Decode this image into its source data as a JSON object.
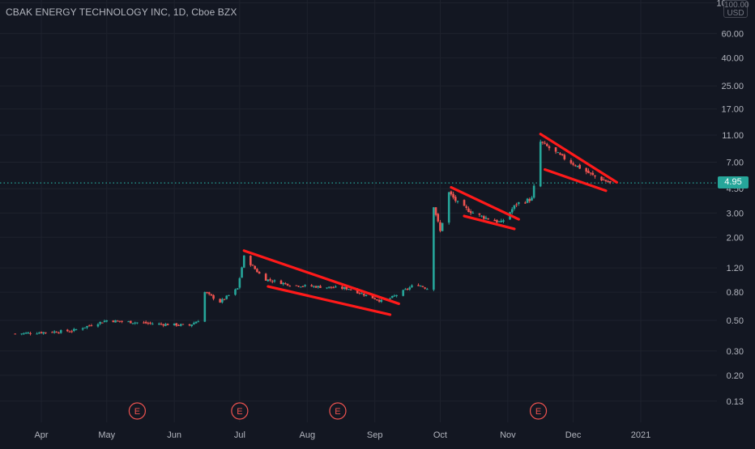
{
  "header": {
    "title": "CBAK ENERGY TECHNOLOGY INC, 1D, Cboe BZX"
  },
  "price_axis": {
    "currency_top": "100.00",
    "currency": "USD",
    "last_price_label": "4.95"
  },
  "colors": {
    "background": "#131722",
    "up": "#26a69a",
    "down": "#ef5350",
    "pattern_lines": "#ff1a1a",
    "grid": "#1e222d",
    "last_price_line": "#26a69a",
    "axis_text": "#b2b5be"
  },
  "chart_data": {
    "type": "candlestick",
    "symbol": "CBAK",
    "interval": "1D",
    "exchange": "Cboe BZX",
    "y_scale": "log",
    "y_ticks": [
      0.13,
      0.2,
      0.3,
      0.5,
      0.8,
      1.2,
      2.0,
      3.0,
      4.5,
      7.0,
      11.0,
      17.0,
      25.0,
      40.0,
      60.0,
      100.0
    ],
    "y_tick_labels": [
      "0.13",
      "0.20",
      "0.30",
      "0.50",
      "0.80",
      "1.20",
      "2.00",
      "3.00",
      "4.50",
      "7.00",
      "11.00",
      "17.00",
      "25.00",
      "40.00",
      "60.00",
      "100.00"
    ],
    "x_tick_labels": [
      "Apr",
      "May",
      "Jun",
      "Jul",
      "Aug",
      "Sep",
      "Oct",
      "Nov",
      "Dec",
      "2021"
    ],
    "last_price": 4.95,
    "earnings_markers": [
      {
        "date": "2020-05-15",
        "label": "E"
      },
      {
        "date": "2020-07-01",
        "label": "E"
      },
      {
        "date": "2020-08-15",
        "label": "E"
      },
      {
        "date": "2020-11-15",
        "label": "E"
      }
    ],
    "anchors": [
      {
        "date": "2020-03-20",
        "close": 0.4
      },
      {
        "date": "2020-04-15",
        "close": 0.42
      },
      {
        "date": "2020-05-01",
        "close": 0.5
      },
      {
        "date": "2020-05-25",
        "close": 0.47
      },
      {
        "date": "2020-06-08",
        "close": 0.46
      },
      {
        "date": "2020-06-12",
        "close": 0.5
      },
      {
        "date": "2020-06-15",
        "close": 0.8
      },
      {
        "date": "2020-06-22",
        "close": 0.68
      },
      {
        "date": "2020-06-30",
        "close": 0.85
      },
      {
        "date": "2020-07-03",
        "close": 1.45
      },
      {
        "date": "2020-07-12",
        "close": 1.0
      },
      {
        "date": "2020-07-25",
        "close": 0.9
      },
      {
        "date": "2020-08-20",
        "close": 0.85
      },
      {
        "date": "2020-09-05",
        "close": 0.68
      },
      {
        "date": "2020-09-12",
        "close": 0.78
      },
      {
        "date": "2020-09-20",
        "close": 0.92
      },
      {
        "date": "2020-09-25",
        "close": 0.85
      },
      {
        "date": "2020-09-28",
        "close": 3.4
      },
      {
        "date": "2020-10-01",
        "close": 2.2
      },
      {
        "date": "2020-10-05",
        "close": 4.2
      },
      {
        "date": "2020-10-10",
        "close": 3.4
      },
      {
        "date": "2020-10-18",
        "close": 2.9
      },
      {
        "date": "2020-10-29",
        "close": 2.55
      },
      {
        "date": "2020-11-05",
        "close": 3.5
      },
      {
        "date": "2020-11-12",
        "close": 3.8
      },
      {
        "date": "2020-11-14",
        "close": 5.6
      },
      {
        "date": "2020-11-16",
        "close": 9.8
      },
      {
        "date": "2020-11-25",
        "close": 7.8
      },
      {
        "date": "2020-12-10",
        "close": 5.6
      },
      {
        "date": "2020-12-18",
        "close": 4.95
      }
    ],
    "pattern_lines": [
      {
        "from": {
          "date": "2020-07-03",
          "price": 1.6
        },
        "to": {
          "date": "2020-09-12",
          "price": 0.66
        }
      },
      {
        "from": {
          "date": "2020-07-14",
          "price": 0.88
        },
        "to": {
          "date": "2020-09-08",
          "price": 0.55
        }
      },
      {
        "from": {
          "date": "2020-10-06",
          "price": 4.6
        },
        "to": {
          "date": "2020-11-06",
          "price": 2.7
        }
      },
      {
        "from": {
          "date": "2020-10-12",
          "price": 2.85
        },
        "to": {
          "date": "2020-11-04",
          "price": 2.3
        }
      },
      {
        "from": {
          "date": "2020-11-16",
          "price": 11.2
        },
        "to": {
          "date": "2020-12-21",
          "price": 5.0
        }
      },
      {
        "from": {
          "date": "2020-11-18",
          "price": 6.2
        },
        "to": {
          "date": "2020-12-16",
          "price": 4.35
        }
      }
    ]
  }
}
